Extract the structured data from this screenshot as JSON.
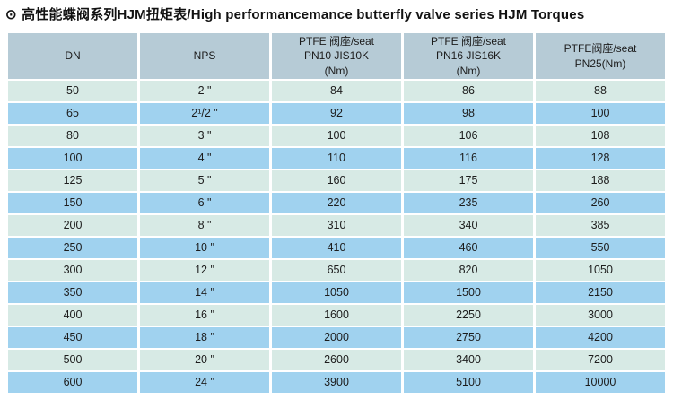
{
  "title": {
    "bullet": "⊙",
    "text": "高性能蝶阀系列HJM扭矩表/High performancemance butterfly valve series HJM Torques"
  },
  "colors": {
    "header_bg": "#b6cbd6",
    "row_light": "#d7eae5",
    "row_blue": "#a0d2ef",
    "text": "#1c1c1c",
    "background": "#ffffff"
  },
  "table": {
    "columns": [
      {
        "id": "dn",
        "label": "DN"
      },
      {
        "id": "nps",
        "label": "NPS"
      },
      {
        "id": "pn10",
        "label": "PTFE 阀座/seat\nPN10 JIS10K\n(Nm)"
      },
      {
        "id": "pn16",
        "label": "PTFE 阀座/seat\nPN16 JIS16K\n(Nm)"
      },
      {
        "id": "pn25",
        "label": "PTFE阀座/seat\nPN25(Nm)"
      }
    ],
    "rows": [
      [
        "50",
        "2 \"",
        "84",
        "86",
        "88"
      ],
      [
        "65",
        "2¹/2 \"",
        "92",
        "98",
        "100"
      ],
      [
        "80",
        "3 \"",
        "100",
        "106",
        "108"
      ],
      [
        "100",
        "4 \"",
        "110",
        "116",
        "128"
      ],
      [
        "125",
        "5 \"",
        "160",
        "175",
        "188"
      ],
      [
        "150",
        "6 \"",
        "220",
        "235",
        "260"
      ],
      [
        "200",
        "8 \"",
        "310",
        "340",
        "385"
      ],
      [
        "250",
        "10 \"",
        "410",
        "460",
        "550"
      ],
      [
        "300",
        "12 \"",
        "650",
        "820",
        "1050"
      ],
      [
        "350",
        "14 \"",
        "1050",
        "1500",
        "2150"
      ],
      [
        "400",
        "16 \"",
        "1600",
        "2250",
        "3000"
      ],
      [
        "450",
        "18 \"",
        "2000",
        "2750",
        "4200"
      ],
      [
        "500",
        "20 \"",
        "2600",
        "3400",
        "7200"
      ],
      [
        "600",
        "24 \"",
        "3900",
        "5100",
        "10000"
      ]
    ]
  }
}
